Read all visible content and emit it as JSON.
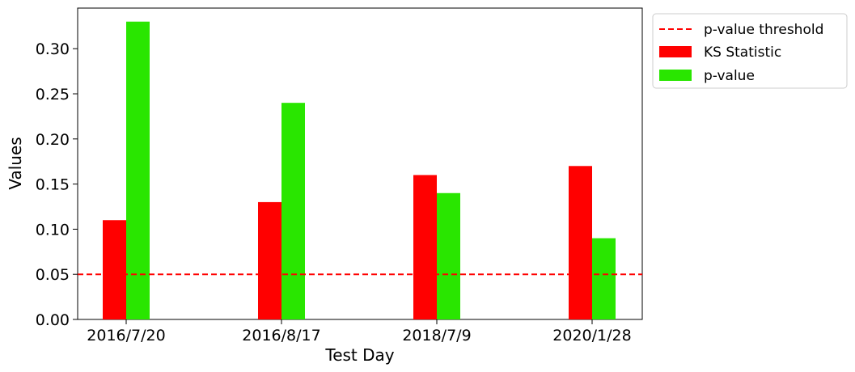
{
  "chart_data": {
    "type": "bar",
    "xlabel": "Test Day",
    "ylabel": "Values",
    "categories": [
      "2016/7/20",
      "2016/8/17",
      "2018/7/9",
      "2020/1/28"
    ],
    "series": [
      {
        "name": "KS Statistic",
        "values": [
          0.11,
          0.13,
          0.16,
          0.17
        ],
        "color": "#ff0000"
      },
      {
        "name": "p-value",
        "values": [
          0.33,
          0.24,
          0.14,
          0.09
        ],
        "color": "#29e600"
      }
    ],
    "threshold": {
      "name": "p-value threshold",
      "value": 0.05,
      "color": "#ff0000",
      "style": "dashed"
    },
    "ylim": [
      0,
      0.345
    ],
    "yticks": [
      "0.00",
      "0.05",
      "0.10",
      "0.15",
      "0.20",
      "0.25",
      "0.30"
    ],
    "ytick_values": [
      0,
      0.05,
      0.1,
      0.15,
      0.2,
      0.25,
      0.3
    ],
    "legend": "outside-top-right",
    "grid": false
  }
}
